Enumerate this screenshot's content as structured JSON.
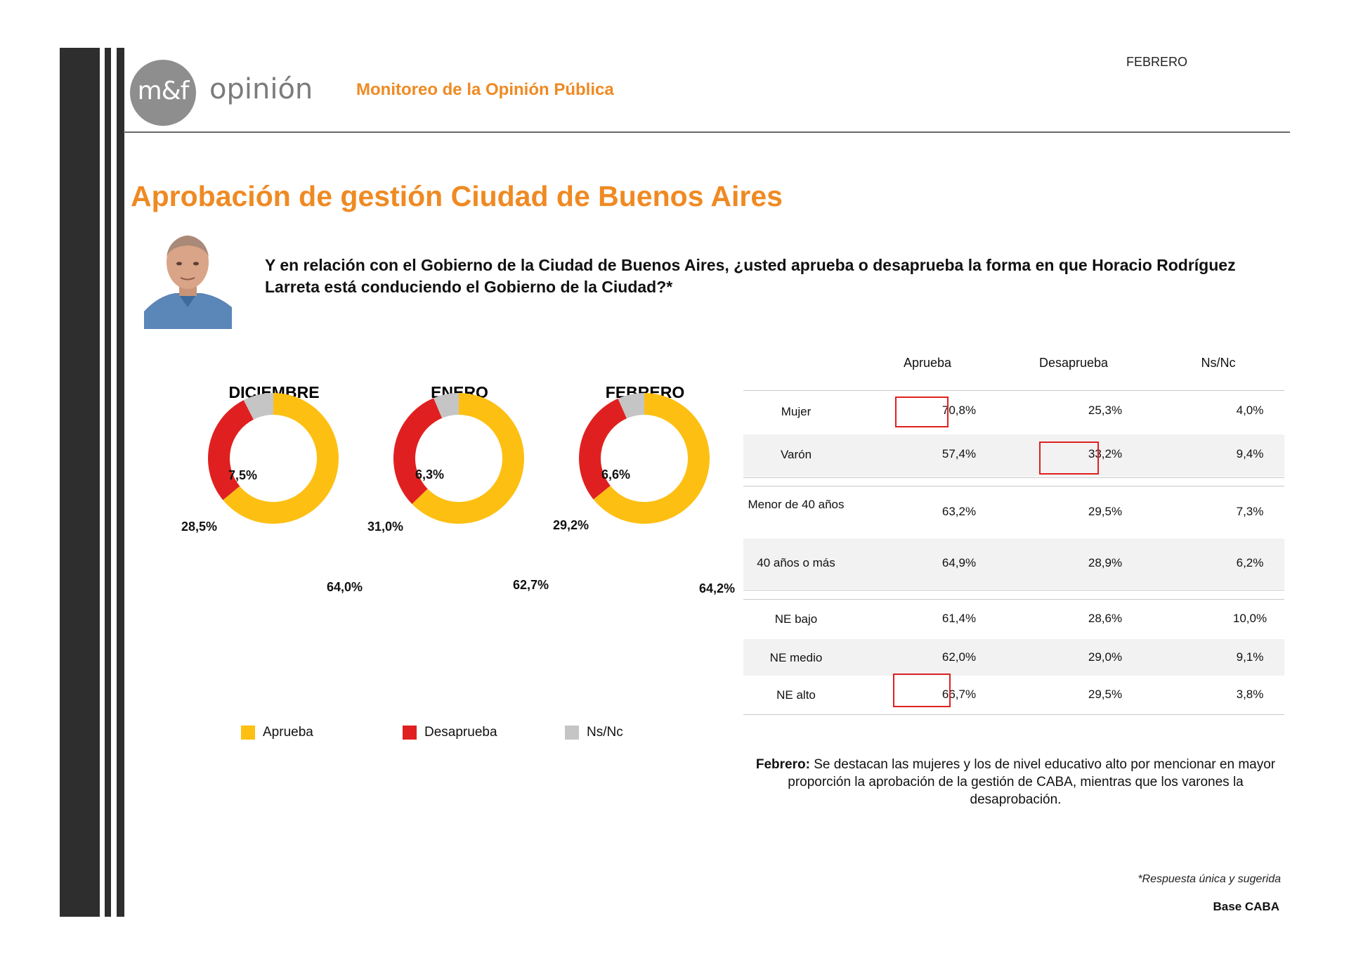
{
  "header": {
    "logo_mark": "m&f",
    "logo_word": "opinión",
    "subtitle": "Monitoreo de la Opinión Pública",
    "month": "FEBRERO"
  },
  "page_title": "Aprobación de gestión Ciudad de Buenos Aires",
  "question": "Y en relación con el Gobierno de la Ciudad de Buenos Aires, ¿usted aprueba o desaprueba la forma en que Horacio Rodríguez Larreta está conduciendo el Gobierno de la Ciudad?*",
  "colors": {
    "aprueba": "#fdbf12",
    "desaprueba": "#e02020",
    "nsnc": "#c5c5c5",
    "accent": "#ef8a23"
  },
  "legend": [
    "Aprueba",
    "Desaprueba",
    "Ns/Nc"
  ],
  "chart_data": [
    {
      "type": "pie",
      "title": "DICIEMBRE",
      "categories": [
        "Aprueba",
        "Desaprueba",
        "Ns/Nc"
      ],
      "values": [
        64.0,
        28.5,
        7.5
      ],
      "labels": [
        "64,0%",
        "28,5%",
        "7,5%"
      ]
    },
    {
      "type": "pie",
      "title": "ENERO",
      "categories": [
        "Aprueba",
        "Desaprueba",
        "Ns/Nc"
      ],
      "values": [
        62.7,
        31.0,
        6.3
      ],
      "labels": [
        "62,7%",
        "31,0%",
        "6,3%"
      ]
    },
    {
      "type": "pie",
      "title": "FEBRERO",
      "categories": [
        "Aprueba",
        "Desaprueba",
        "Ns/Nc"
      ],
      "values": [
        64.2,
        29.2,
        6.6
      ],
      "labels": [
        "64,2%",
        "29,2%",
        "6,6%"
      ]
    },
    {
      "type": "table",
      "columns": [
        "Aprueba",
        "Desaprueba",
        "Ns/Nc"
      ],
      "rows": [
        {
          "label": "Mujer",
          "values": [
            "70,8%",
            "25,3%",
            "4,0%"
          ]
        },
        {
          "label": "Varón",
          "values": [
            "57,4%",
            "33,2%",
            "9,4%"
          ]
        },
        {
          "label": "Menor de 40 años",
          "values": [
            "63,2%",
            "29,5%",
            "7,3%"
          ]
        },
        {
          "label": "40 años o más",
          "values": [
            "64,9%",
            "28,9%",
            "6,2%"
          ]
        },
        {
          "label": "NE bajo",
          "values": [
            "61,4%",
            "28,6%",
            "10,0%"
          ]
        },
        {
          "label": "NE medio",
          "values": [
            "62,0%",
            "29,0%",
            "9,1%"
          ]
        },
        {
          "label": "NE alto",
          "values": [
            "66,7%",
            "29,5%",
            "3,8%"
          ]
        }
      ]
    }
  ],
  "note": {
    "lead": "Febrero:",
    "text": " Se destacan las mujeres y los de nivel educativo alto por mencionar en mayor proporción la aprobación de la gestión de CABA, mientras que los varones la desaprobación."
  },
  "footer": {
    "footnote": "*Respuesta única y sugerida",
    "base": "Base CABA"
  }
}
